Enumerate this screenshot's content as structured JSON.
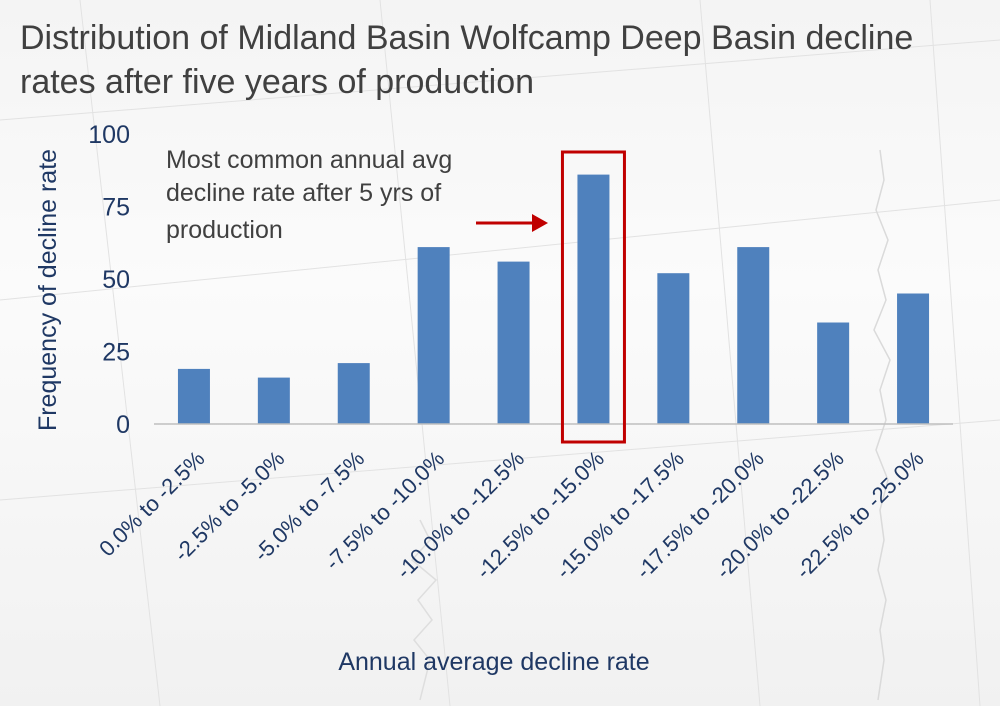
{
  "chart_data": {
    "type": "bar",
    "title_line1": "Distribution of Midland Basin Wolfcamp Deep Basin decline",
    "title_line2": "rates after five years of production",
    "xlabel": "Annual average decline rate",
    "ylabel": "Frequency of decline rate",
    "ylim": [
      0,
      100
    ],
    "yticks": [
      "0",
      "25",
      "50",
      "75",
      "100"
    ],
    "categories": [
      "0.0% to -2.5%",
      "-2.5% to -5.0%",
      "-5.0% to -7.5%",
      "-7.5% to -10.0%",
      "-10.0% to -12.5%",
      "-12.5% to -15.0%",
      "-15.0% to -17.5%",
      "-17.5% to -20.0%",
      "-20.0% to -22.5%",
      "-22.5% to -25.0%"
    ],
    "values": [
      19,
      16,
      21,
      61,
      56,
      86,
      52,
      61,
      35,
      45
    ],
    "highlight_index": 5,
    "annotation": {
      "line1": "Most common annual avg",
      "line2": "decline rate after 5 yrs of",
      "line3": "production"
    },
    "colors": {
      "bar": "#4f81bd",
      "highlight": "#c00000",
      "axis_text": "#1f3864",
      "title": "#404040"
    }
  }
}
